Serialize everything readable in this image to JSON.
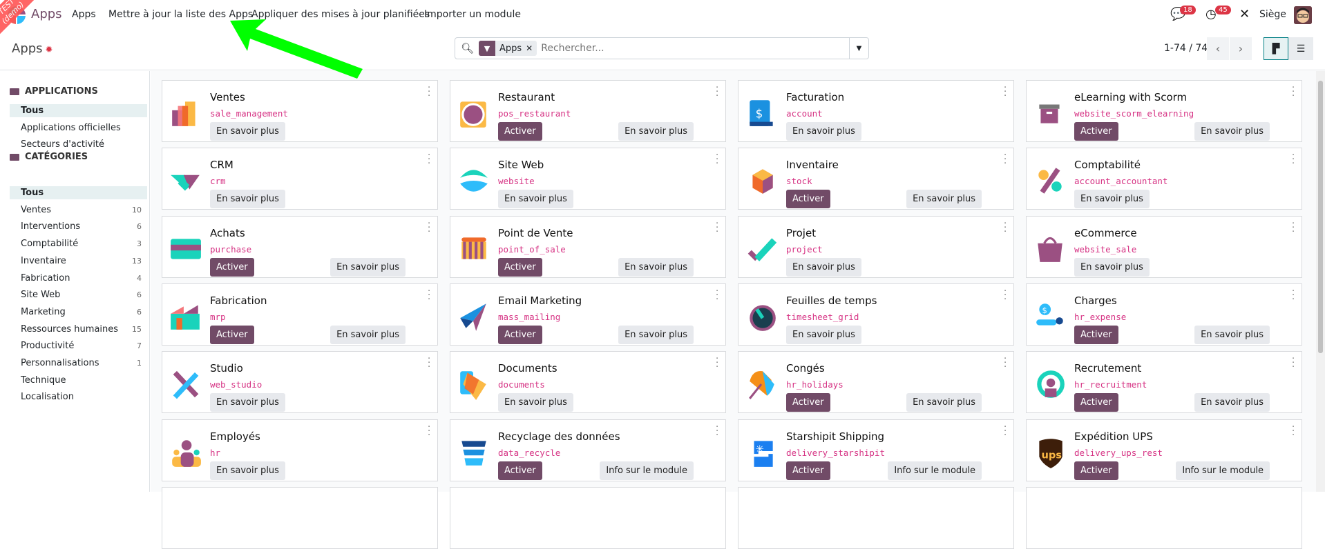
{
  "nav": {
    "brand": "Apps",
    "items": [
      "Apps",
      "Mettre à jour la liste des Apps",
      "Appliquer des mises à jour planifiées",
      "Importer un module"
    ],
    "messages_count": "18",
    "activities_count": "45",
    "company": "Siège"
  },
  "ribbon": {
    "line1": "TEST",
    "line2": "(demo)"
  },
  "control": {
    "title": "Apps",
    "facet": "Apps",
    "search_placeholder": "Rechercher...",
    "pager": "1-74 / 74"
  },
  "sidebar": {
    "applications_header": "APPLICATIONS",
    "applications": [
      "Tous",
      "Applications officielles",
      "Secteurs d'activité"
    ],
    "categories_header": "CATÉGORIES",
    "categories": [
      {
        "label": "Tous",
        "count": ""
      },
      {
        "label": "Ventes",
        "count": "10"
      },
      {
        "label": "Interventions",
        "count": "6"
      },
      {
        "label": "Comptabilité",
        "count": "3"
      },
      {
        "label": "Inventaire",
        "count": "13"
      },
      {
        "label": "Fabrication",
        "count": "4"
      },
      {
        "label": "Site Web",
        "count": "6"
      },
      {
        "label": "Marketing",
        "count": "6"
      },
      {
        "label": "Ressources humaines",
        "count": "15"
      },
      {
        "label": "Productivité",
        "count": "7"
      },
      {
        "label": "Personnalisations",
        "count": "1"
      },
      {
        "label": "Technique",
        "count": ""
      },
      {
        "label": "Localisation",
        "count": ""
      }
    ]
  },
  "colors": {
    "primary": "#714B67",
    "technical_name": "#d63384",
    "arrow": "#00ff00",
    "ribbon": "#ff5555"
  },
  "apps": [
    {
      "name": "Ventes",
      "tech": "sale_management",
      "icon": "sales-icon",
      "buttons": [
        "En savoir plus"
      ]
    },
    {
      "name": "Restaurant",
      "tech": "pos_restaurant",
      "icon": "restaurant-icon",
      "buttons": [
        "Activer",
        "En savoir plus"
      ]
    },
    {
      "name": "Facturation",
      "tech": "account",
      "icon": "invoicing-icon",
      "buttons": [
        "En savoir plus"
      ]
    },
    {
      "name": "eLearning with Scorm",
      "tech": "website_scorm_elearning",
      "icon": "scorm-icon",
      "buttons": [
        "Activer",
        "En savoir plus"
      ]
    },
    {
      "name": "CRM",
      "tech": "crm",
      "icon": "crm-icon",
      "buttons": [
        "En savoir plus"
      ]
    },
    {
      "name": "Site Web",
      "tech": "website",
      "icon": "website-icon",
      "buttons": [
        "En savoir plus"
      ]
    },
    {
      "name": "Inventaire",
      "tech": "stock",
      "icon": "inventory-icon",
      "buttons": [
        "Activer",
        "En savoir plus"
      ]
    },
    {
      "name": "Comptabilité",
      "tech": "account_accountant",
      "icon": "accounting-icon",
      "buttons": [
        "En savoir plus"
      ]
    },
    {
      "name": "Achats",
      "tech": "purchase",
      "icon": "purchase-icon",
      "buttons": [
        "Activer",
        "En savoir plus"
      ]
    },
    {
      "name": "Point de Vente",
      "tech": "point_of_sale",
      "icon": "pos-icon",
      "buttons": [
        "Activer",
        "En savoir plus"
      ]
    },
    {
      "name": "Projet",
      "tech": "project",
      "icon": "project-icon",
      "buttons": [
        "En savoir plus"
      ]
    },
    {
      "name": "eCommerce",
      "tech": "website_sale",
      "icon": "ecommerce-icon",
      "buttons": [
        "En savoir plus"
      ]
    },
    {
      "name": "Fabrication",
      "tech": "mrp",
      "icon": "manufacturing-icon",
      "buttons": [
        "Activer",
        "En savoir plus"
      ]
    },
    {
      "name": "Email Marketing",
      "tech": "mass_mailing",
      "icon": "email-marketing-icon",
      "buttons": [
        "Activer",
        "En savoir plus"
      ]
    },
    {
      "name": "Feuilles de temps",
      "tech": "timesheet_grid",
      "icon": "timesheet-icon",
      "buttons": [
        "En savoir plus"
      ]
    },
    {
      "name": "Charges",
      "tech": "hr_expense",
      "icon": "expenses-icon",
      "buttons": [
        "Activer",
        "En savoir plus"
      ]
    },
    {
      "name": "Studio",
      "tech": "web_studio",
      "icon": "studio-icon",
      "buttons": [
        "En savoir plus"
      ]
    },
    {
      "name": "Documents",
      "tech": "documents",
      "icon": "documents-icon",
      "buttons": [
        "En savoir plus"
      ]
    },
    {
      "name": "Congés",
      "tech": "hr_holidays",
      "icon": "time-off-icon",
      "buttons": [
        "Activer",
        "En savoir plus"
      ]
    },
    {
      "name": "Recrutement",
      "tech": "hr_recruitment",
      "icon": "recruitment-icon",
      "buttons": [
        "Activer",
        "En savoir plus"
      ]
    },
    {
      "name": "Employés",
      "tech": "hr",
      "icon": "employees-icon",
      "buttons": [
        "En savoir plus"
      ]
    },
    {
      "name": "Recyclage des données",
      "tech": "data_recycle",
      "icon": "data-recycle-icon",
      "buttons": [
        "Activer",
        "Info sur le module"
      ]
    },
    {
      "name": "Starshipit Shipping",
      "tech": "delivery_starshipit",
      "icon": "starshipit-icon",
      "buttons": [
        "Activer",
        "Info sur le module"
      ]
    },
    {
      "name": "Expédition UPS",
      "tech": "delivery_ups_rest",
      "icon": "ups-icon",
      "buttons": [
        "Activer",
        "Info sur le module"
      ]
    }
  ]
}
